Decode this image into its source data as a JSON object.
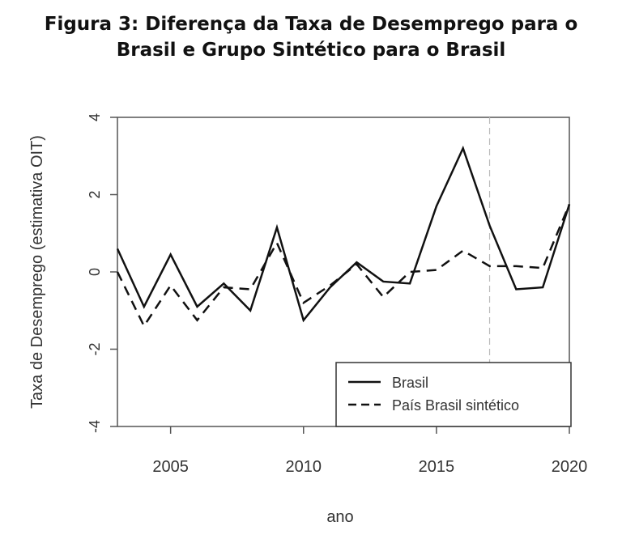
{
  "title_line1": "Figura 3: Diferença da Taxa de Desemprego para o",
  "title_line2": "Brasil e Grupo Sintético para o Brasil",
  "chart_data": {
    "type": "line",
    "title": "Figura 3: Diferença da Taxa de Desemprego para o Brasil e Grupo Sintético para o Brasil",
    "xlabel": "ano",
    "ylabel": "Taxa de Desemprego (estimativa OIT)",
    "xlim": [
      2003,
      2020
    ],
    "ylim": [
      -4,
      4
    ],
    "xticks": [
      2005,
      2010,
      2015,
      2020
    ],
    "yticks": [
      -4,
      -2,
      0,
      2,
      4
    ],
    "x": [
      2003,
      2004,
      2005,
      2006,
      2007,
      2008,
      2009,
      2010,
      2011,
      2012,
      2013,
      2014,
      2015,
      2016,
      2017,
      2018,
      2019,
      2020
    ],
    "series": [
      {
        "name": "Brasil",
        "style": "solid",
        "values": [
          0.6,
          -0.9,
          0.45,
          -0.9,
          -0.3,
          -1.0,
          1.15,
          -1.25,
          -0.4,
          0.25,
          -0.25,
          -0.3,
          1.7,
          3.2,
          1.2,
          -0.45,
          -0.4,
          1.75
        ]
      },
      {
        "name": "País Brasil sintético",
        "style": "dashed",
        "values": [
          0.0,
          -1.4,
          -0.35,
          -1.25,
          -0.4,
          -0.45,
          0.75,
          -0.8,
          -0.35,
          0.2,
          -0.65,
          0.0,
          0.05,
          0.55,
          0.15,
          0.15,
          0.1,
          1.75
        ]
      }
    ],
    "vline": 2017,
    "legend_position": "bottom-right",
    "grid": false
  }
}
